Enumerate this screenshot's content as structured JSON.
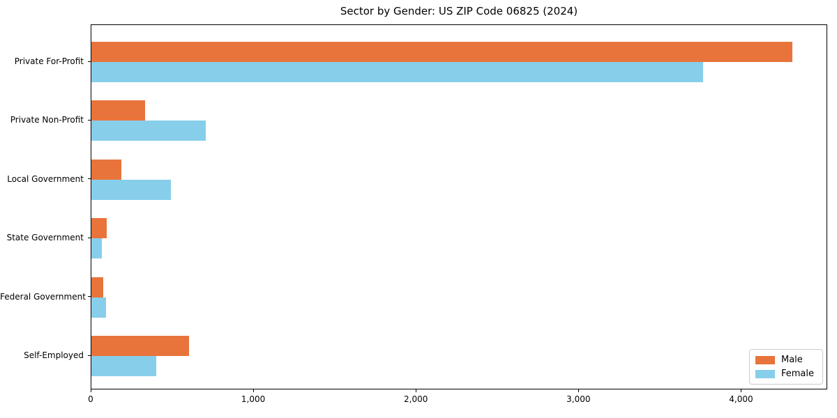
{
  "chart_data": {
    "type": "bar",
    "orientation": "horizontal",
    "title": "Sector by Gender: US ZIP Code 06825 (2024)",
    "categories": [
      "Private For-Profit",
      "Private Non-Profit",
      "Local Government",
      "State Government",
      "Federal Government",
      "Self-Employed"
    ],
    "series": [
      {
        "name": "Male",
        "color": "#E8743B",
        "values": [
          4310,
          330,
          185,
          95,
          75,
          600
        ]
      },
      {
        "name": "Female",
        "color": "#87CEEB",
        "values": [
          3760,
          705,
          490,
          65,
          90,
          400
        ]
      }
    ],
    "xlabel": "",
    "ylabel": "",
    "xlim": [
      0,
      4530
    ],
    "x_tick_values": [
      0,
      1000,
      2000,
      3000,
      4000
    ],
    "x_tick_labels": [
      "0",
      "1,000",
      "2,000",
      "3,000",
      "4,000"
    ],
    "grid": false,
    "legend": {
      "position": "lower right",
      "entries": [
        "Male",
        "Female"
      ]
    }
  }
}
